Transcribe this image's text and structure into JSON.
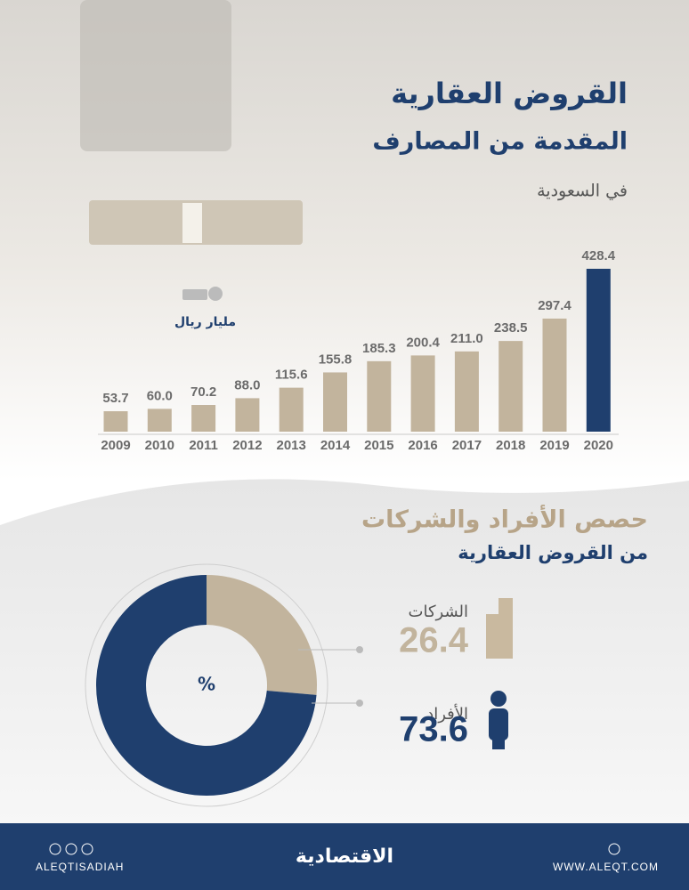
{
  "chart_data": [
    {
      "type": "bar",
      "title": "القروض العقارية",
      "subtitle": "المقدمة من المصارف",
      "region": "في السعودية",
      "unit": "مليار ريال",
      "categories": [
        "2009",
        "2010",
        "2011",
        "2012",
        "2013",
        "2014",
        "2015",
        "2016",
        "2017",
        "2018",
        "2019",
        "2020"
      ],
      "values": [
        53.7,
        60.0,
        70.2,
        88.0,
        115.6,
        155.8,
        185.3,
        200.4,
        211.0,
        238.5,
        297.4,
        428.4
      ],
      "value_labels": [
        "53.7",
        "60.0",
        "70.2",
        "88.0",
        "115.6",
        "155.8",
        "185.3",
        "200.4",
        "211.0",
        "238.5",
        "297.4",
        "428.4"
      ],
      "colors": [
        "#c2b49d",
        "#c2b49d",
        "#c2b49d",
        "#c2b49d",
        "#c2b49d",
        "#c2b49d",
        "#c2b49d",
        "#c2b49d",
        "#c2b49d",
        "#c2b49d",
        "#c2b49d",
        "#1f3f6e"
      ]
    },
    {
      "type": "donut",
      "title": "حصص الأفراد والشركات",
      "subtitle": "من القروض العقارية",
      "center_label": "%",
      "categories": [
        "الشركات",
        "الأفراد"
      ],
      "values": [
        26.4,
        73.6
      ],
      "colors": [
        "#c2b49d",
        "#1f3f6e"
      ]
    }
  ],
  "footer": {
    "handle": "ALEQTISADIAH",
    "logo": "الاقتصادية",
    "website": "WWW.ALEQT.COM"
  }
}
